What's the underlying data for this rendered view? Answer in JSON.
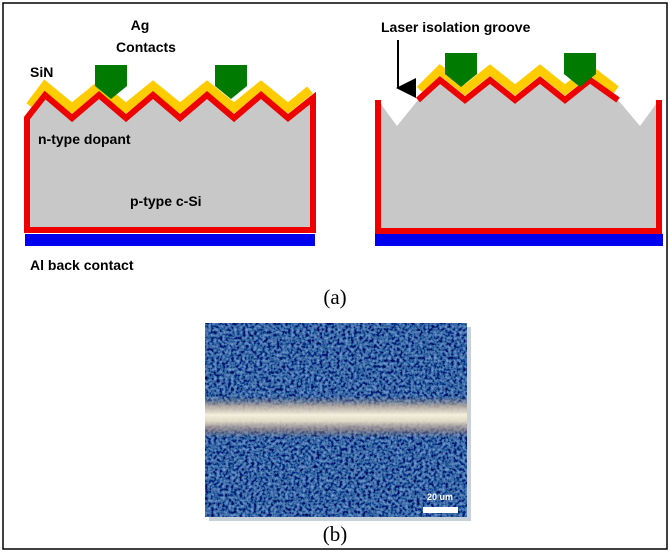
{
  "diagram": {
    "panel_a": {
      "labels": {
        "ag": "Ag",
        "contacts": "Contacts",
        "sin": "SiN",
        "n_type": "n-type dopant",
        "p_type": "p-type c-Si",
        "al_back": "Al back contact",
        "groove": "Laser isolation groove"
      },
      "caption": "(a)"
    },
    "panel_b": {
      "scale_bar": "20 um",
      "caption": "(b)"
    }
  }
}
